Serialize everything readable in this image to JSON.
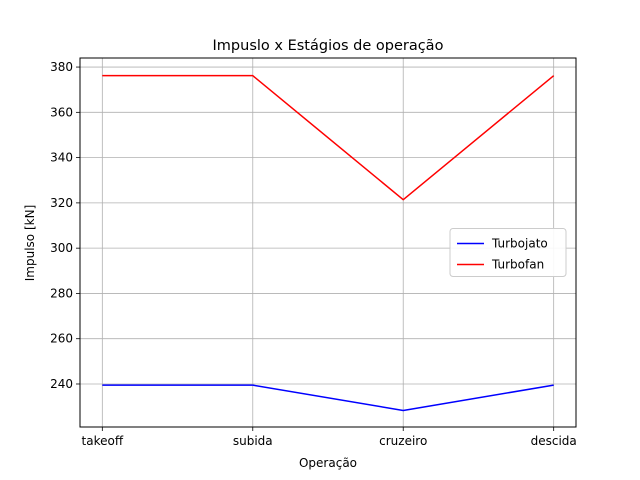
{
  "chart_data": {
    "type": "line",
    "title": "Impuslo x Estágios de operação",
    "xlabel": "Operação",
    "ylabel": "Impulso [kN]",
    "categories": [
      "takeoff",
      "subida",
      "cruzeiro",
      "descida"
    ],
    "ylim": [
      221,
      384
    ],
    "yticks": [
      240,
      260,
      280,
      300,
      320,
      340,
      360,
      380
    ],
    "grid": true,
    "legend_position": "center-right",
    "series": [
      {
        "name": "Turbojato",
        "color": "#0000ff",
        "values": [
          239.5,
          239.5,
          228.3,
          239.5
        ]
      },
      {
        "name": "Turbofan",
        "color": "#ff0000",
        "values": [
          376.2,
          376.2,
          321.4,
          376.2
        ]
      }
    ]
  }
}
